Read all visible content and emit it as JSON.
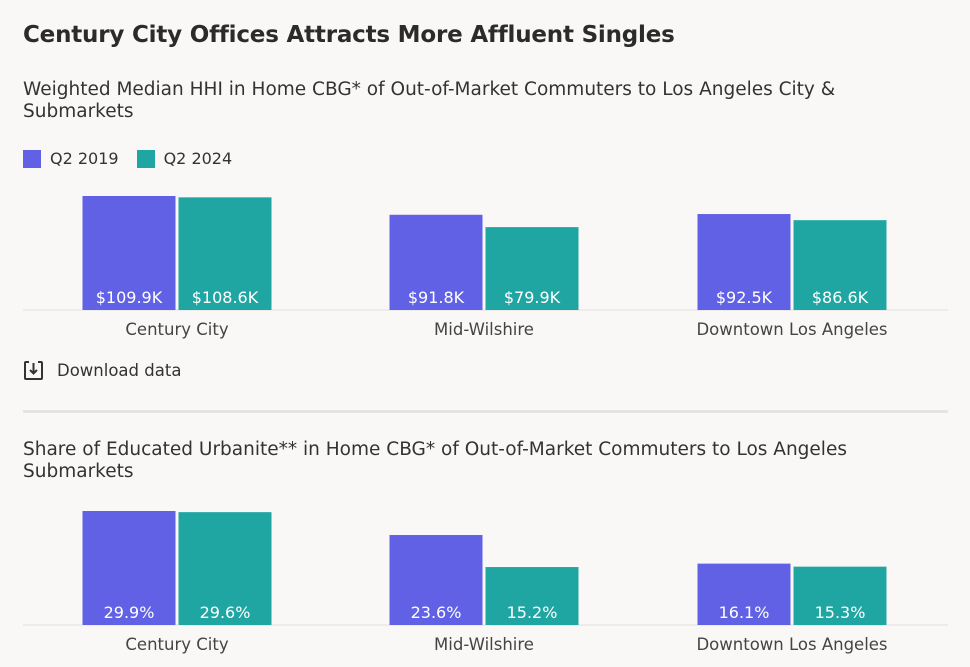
{
  "title": "Century City Offices Attracts More Affluent Singles",
  "legend": {
    "items": [
      {
        "label": "Q2 2019",
        "color": "#6161e6"
      },
      {
        "label": "Q2 2024",
        "color": "#1fa6a2"
      }
    ]
  },
  "download": {
    "label": "Download data",
    "icon": "download-icon"
  },
  "chart_data": [
    {
      "type": "bar",
      "title": "Weighted Median HHI in Home CBG* of Out-of-Market Commuters to Los Angeles City & Submarkets",
      "categories": [
        "Century City",
        "Mid-Wilshire",
        "Downtown Los Angeles"
      ],
      "series": [
        {
          "name": "Q2 2019",
          "values": [
            109.9,
            91.8,
            92.5
          ],
          "labels": [
            "$109.9K",
            "$91.8K",
            "$92.5K"
          ]
        },
        {
          "name": "Q2 2024",
          "values": [
            108.6,
            79.9,
            86.6
          ],
          "labels": [
            "$108.6K",
            "$79.9K",
            "$86.6K"
          ]
        }
      ],
      "ylim": [
        0,
        109.9
      ],
      "xlabel": "",
      "ylabel": "",
      "grid": false
    },
    {
      "type": "bar",
      "title": "Share of Educated Urbanite** in Home CBG* of Out-of-Market Commuters to Los Angeles Submarkets",
      "categories": [
        "Century City",
        "Mid-Wilshire",
        "Downtown Los Angeles"
      ],
      "series": [
        {
          "name": "Q2 2019",
          "values": [
            29.9,
            23.6,
            16.1
          ],
          "labels": [
            "29.9%",
            "23.6%",
            "16.1%"
          ]
        },
        {
          "name": "Q2 2024",
          "values": [
            29.6,
            15.2,
            15.3
          ],
          "labels": [
            "29.6%",
            "15.2%",
            "15.3%"
          ]
        }
      ],
      "ylim": [
        0,
        29.9
      ],
      "xlabel": "",
      "ylabel": "",
      "grid": false
    }
  ]
}
